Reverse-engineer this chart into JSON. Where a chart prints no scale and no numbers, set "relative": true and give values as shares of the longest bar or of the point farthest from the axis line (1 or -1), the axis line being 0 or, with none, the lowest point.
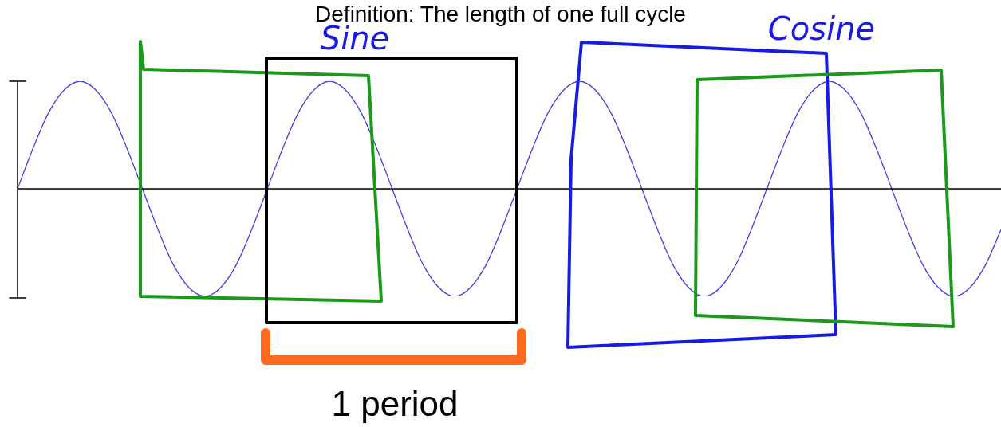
{
  "chart_data": {
    "type": "line",
    "title": "Definition: The length of one full cycle",
    "relative": true,
    "marker": "none",
    "line_style": "solid",
    "color": "#4040e0",
    "categories": [
      null,
      null,
      null,
      null,
      null,
      null,
      null,
      null,
      null,
      null,
      null,
      null,
      null,
      null,
      null,
      null,
      null,
      null,
      null,
      null,
      null,
      null,
      null,
      null,
      null,
      null,
      null,
      null,
      null,
      null,
      null,
      null,
      null,
      null,
      null,
      null,
      null,
      null,
      null,
      null,
      null,
      null,
      null,
      null,
      null,
      null,
      null,
      null,
      null,
      null,
      null,
      null,
      null,
      null,
      null,
      null,
      null,
      null,
      null,
      null,
      null,
      null,
      null,
      null
    ],
    "values": [
      0,
      0.38,
      0.71,
      0.92,
      1,
      0.92,
      0.71,
      0.38,
      0,
      -0.38,
      -0.71,
      -0.92,
      -1,
      -0.92,
      -0.71,
      -0.38,
      0,
      0.38,
      0.71,
      0.92,
      1,
      0.92,
      0.71,
      0.38,
      0,
      -0.38,
      -0.71,
      -0.92,
      -1,
      -0.92,
      -0.71,
      -0.38,
      0,
      0.38,
      0.71,
      0.92,
      1,
      0.92,
      0.71,
      0.38,
      0,
      -0.38,
      -0.71,
      -0.92,
      -1,
      -0.92,
      -0.71,
      -0.38,
      0,
      0.38,
      0.71,
      0.92,
      1,
      0.92,
      0.71,
      0.38,
      0,
      -0.38,
      -0.71,
      -0.92,
      -1,
      -0.92,
      -0.71,
      -0.38
    ],
    "annotations": [
      "Sine",
      "Cosine",
      "1 period"
    ]
  }
}
